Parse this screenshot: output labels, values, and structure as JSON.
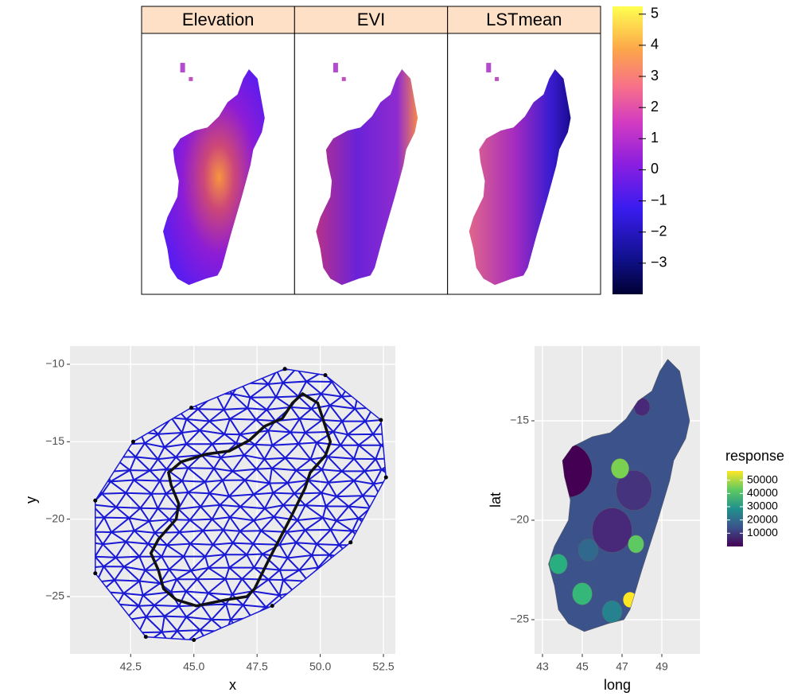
{
  "chart_data": [
    {
      "type": "raster",
      "panels": [
        "Elevation",
        "EVI",
        "LSTmean"
      ],
      "colorbar": {
        "lim": [
          -4,
          5.25
        ],
        "ticks": [
          {
            "value": -3,
            "label": "−3"
          },
          {
            "value": -2,
            "label": "−2"
          },
          {
            "value": -1,
            "label": "−1"
          },
          0,
          1,
          2,
          3,
          4,
          5
        ]
      }
    },
    {
      "type": "mesh",
      "xlabel": "x",
      "ylabel": "y",
      "xlim": [
        40.1,
        52.97
      ],
      "ylim": [
        -28.7,
        -8.82
      ],
      "xticks": [
        42.5,
        {
          "value": 45,
          "label": "45.0"
        },
        47.5,
        {
          "value": 50,
          "label": "50.0"
        },
        52.5
      ],
      "yticks": [
        {
          "value": -10,
          "label": "−10"
        },
        {
          "value": -15,
          "label": "−15"
        },
        {
          "value": -20,
          "label": "−20"
        },
        {
          "value": -25,
          "label": "−25"
        }
      ],
      "grid": true
    },
    {
      "type": "choropleth",
      "xlabel": "long",
      "ylabel": "lat",
      "xlim": [
        42.6,
        50.92
      ],
      "ylim": [
        -26.72,
        -11.24
      ],
      "xticks": [
        43,
        45,
        47,
        49
      ],
      "yticks": [
        {
          "value": -15,
          "label": "−15"
        },
        {
          "value": -20,
          "label": "−20"
        },
        {
          "value": -25,
          "label": "−25"
        }
      ],
      "grid": true,
      "legend": {
        "title": "response",
        "lim": [
          0,
          57000
        ],
        "ticks": [
          10000,
          20000,
          30000,
          40000,
          50000
        ]
      }
    }
  ]
}
